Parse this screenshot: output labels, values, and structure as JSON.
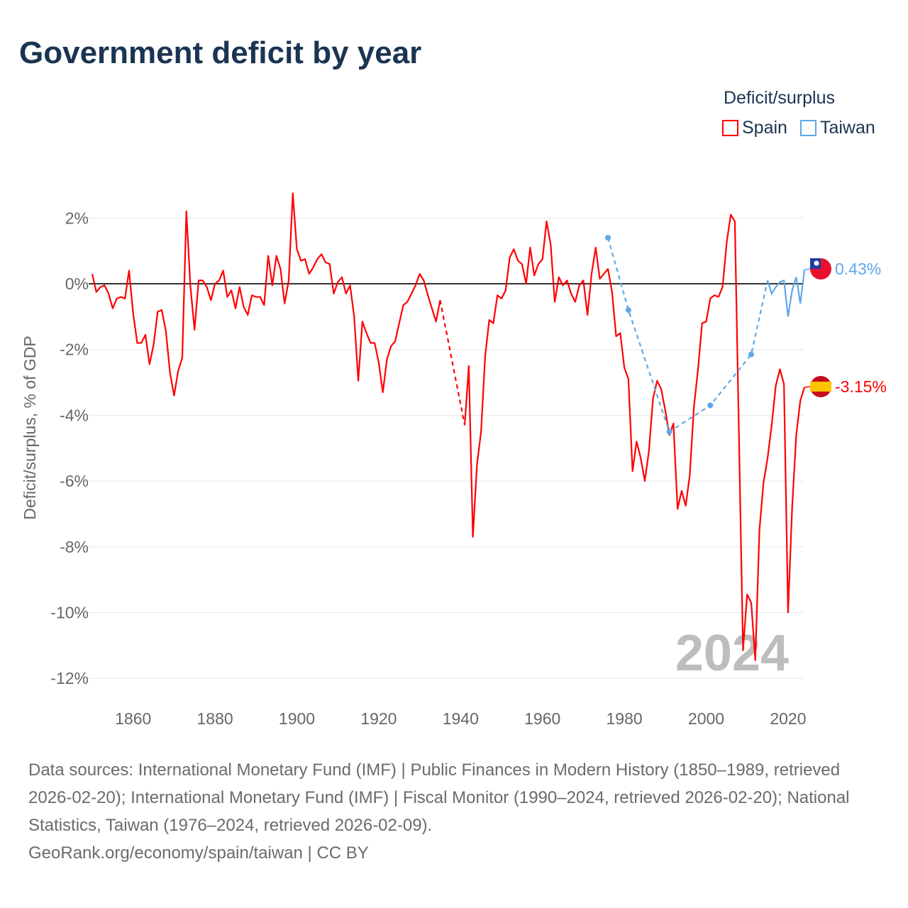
{
  "title": "Government deficit by year",
  "legend": {
    "title": "Deficit/surplus",
    "items": [
      "Spain",
      "Taiwan"
    ]
  },
  "colors": {
    "Spain": "#ff0000",
    "Taiwan": "#5ea8ea"
  },
  "footer": {
    "sources": "Data sources: International Monetary Fund (IMF) | Public Finances in Modern History (1850–1989, retrieved 2026-02-20); International Monetary Fund (IMF) | Fiscal Monitor (1990–2024, retrieved 2026-02-20); National Statistics, Taiwan (1976–2024, retrieved 2026-02-09).",
    "credit": "GeoRank.org/economy/spain/taiwan | CC BY"
  },
  "chart_data": {
    "type": "line",
    "title": "Government deficit by year",
    "ylabel": "Deficit/surplus, % of GDP",
    "xlim": [
      1850,
      2024
    ],
    "ylim": [
      -12.5,
      3
    ],
    "yticks": [
      2,
      0,
      -2,
      -4,
      -6,
      -8,
      -10,
      -12
    ],
    "ytick_labels": [
      "2%",
      "0%",
      "-2%",
      "-4%",
      "-6%",
      "-8%",
      "-10%",
      "-12%"
    ],
    "xticks": [
      1860,
      1880,
      1900,
      1920,
      1940,
      1960,
      1980,
      2000,
      2020
    ],
    "xtick_labels": [
      "1860",
      "1880",
      "1900",
      "1920",
      "1940",
      "1960",
      "1980",
      "2000",
      "2020"
    ],
    "year_label": "2024",
    "legend_position": "top-right",
    "series": [
      {
        "name": "Spain",
        "end_label": "-3.15%",
        "start": 1850,
        "gaps": [
          [
            1935,
            1941
          ]
        ],
        "values": [
          0.3,
          -0.25,
          -0.1,
          -0.05,
          -0.3,
          -0.75,
          -0.45,
          -0.4,
          -0.45,
          0.4,
          -0.9,
          -1.8,
          -1.8,
          -1.55,
          -2.45,
          -1.85,
          -0.85,
          -0.8,
          -1.45,
          -2.7,
          -3.4,
          -2.65,
          -2.25,
          2.2,
          -0.1,
          -1.4,
          0.1,
          0.1,
          -0.1,
          -0.5,
          0.0,
          0.1,
          0.4,
          -0.4,
          -0.2,
          -0.75,
          -0.1,
          -0.7,
          -0.95,
          -0.35,
          -0.4,
          -0.4,
          -0.65,
          0.85,
          -0.05,
          0.85,
          0.45,
          -0.6,
          0.1,
          2.75,
          1.05,
          0.7,
          0.75,
          0.3,
          0.5,
          0.75,
          0.9,
          0.65,
          0.6,
          -0.3,
          0.05,
          0.2,
          -0.3,
          -0.05,
          -1.0,
          -2.95,
          -1.15,
          -1.5,
          -1.8,
          -1.8,
          -2.4,
          -3.3,
          -2.3,
          -1.9,
          -1.75,
          -1.2,
          -0.65,
          -0.55,
          -0.3,
          -0.05,
          0.3,
          0.1,
          -0.35,
          -0.75,
          -1.15,
          -0.5,
          null,
          null,
          null,
          null,
          null,
          -4.3,
          -2.5,
          -7.7,
          -5.5,
          -4.5,
          -2.2,
          -1.1,
          -1.2,
          -0.35,
          -0.45,
          -0.2,
          0.8,
          1.05,
          0.7,
          0.6,
          0.0,
          1.1,
          0.25,
          0.6,
          0.75,
          1.9,
          1.2,
          -0.55,
          0.2,
          -0.05,
          0.1,
          -0.3,
          -0.55,
          -0.05,
          0.1,
          -0.95,
          0.3,
          1.1,
          0.15,
          0.3,
          0.45,
          -0.25,
          -1.6,
          -1.5,
          -2.55,
          -2.9,
          -5.7,
          -4.8,
          -5.3,
          -6.0,
          -5.1,
          -3.5,
          -2.95,
          -3.2,
          -3.85,
          -4.6,
          -4.25,
          -6.85,
          -6.3,
          -6.75,
          -5.8,
          -3.75,
          -2.6,
          -1.2,
          -1.15,
          -0.45,
          -0.35,
          -0.4,
          -0.1,
          1.25,
          2.1,
          1.9,
          -4.6,
          -11.15,
          -9.45,
          -9.7,
          -11.45,
          -7.5,
          -6.05,
          -5.3,
          -4.3,
          -3.1,
          -2.6,
          -3.05,
          -10.0,
          -6.8,
          -4.6,
          -3.55,
          -3.15
        ]
      },
      {
        "name": "Taiwan",
        "end_label": "0.43%",
        "points": [
          [
            1976,
            1.4
          ],
          [
            1981,
            -0.8
          ],
          [
            1991,
            -4.5
          ],
          [
            2001,
            -3.7
          ],
          [
            2011,
            -2.15
          ],
          [
            2015,
            0.1
          ],
          [
            2016,
            -0.3
          ],
          [
            2017,
            -0.1
          ],
          [
            2018,
            0.05
          ],
          [
            2019,
            0.1
          ],
          [
            2020,
            -1.0
          ],
          [
            2021,
            -0.2
          ],
          [
            2022,
            0.2
          ],
          [
            2023,
            -0.6
          ],
          [
            2024,
            0.43
          ]
        ],
        "sparse_until": 2015
      }
    ]
  }
}
